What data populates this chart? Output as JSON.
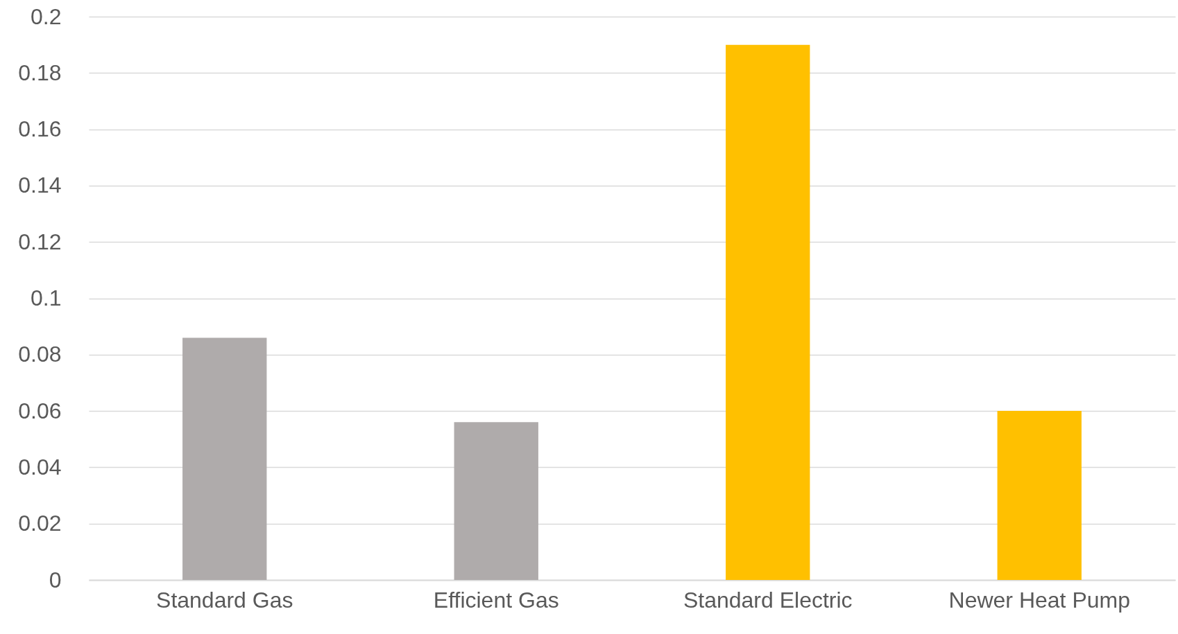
{
  "chart_data": {
    "type": "bar",
    "categories": [
      "Standard Gas",
      "Efficient Gas",
      "Standard Electric",
      "Newer Heat Pump"
    ],
    "values": [
      0.086,
      0.056,
      0.19,
      0.06
    ],
    "colors": [
      "#afabab",
      "#afabab",
      "#ffc000",
      "#ffc000"
    ],
    "ylim": [
      0,
      0.2
    ],
    "yticks": [
      0,
      0.02,
      0.04,
      0.06,
      0.08,
      0.1,
      0.12,
      0.14,
      0.16,
      0.18,
      0.2
    ],
    "grid": "y"
  }
}
